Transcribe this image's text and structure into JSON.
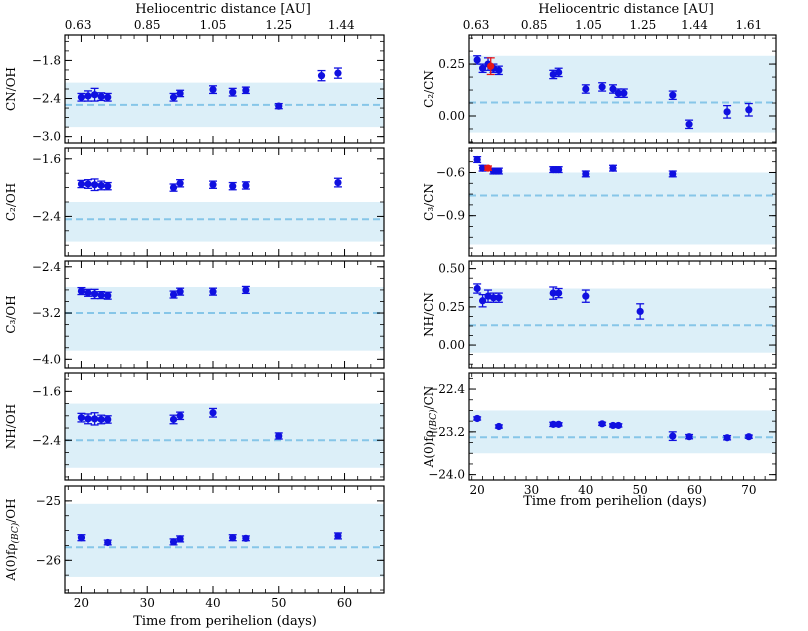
{
  "figure": {
    "title_top_axis": "Heliocentric distance [AU]",
    "x_axis_label": "Time from perihelion (days)"
  },
  "colors": {
    "points": "#1010e0",
    "highlight_points": "#e81818",
    "band": "#dceff8",
    "mean_line": "#86c6e8"
  },
  "chart_data": [
    {
      "type": "scatter",
      "panel": "left-1",
      "ylabel": "CN/OH",
      "ylim": [
        -3.1,
        -1.4
      ],
      "yticks": [
        -3.0,
        -2.4,
        -1.8
      ],
      "ytick_labels": [
        "−3.0",
        "−2.4",
        "−1.8"
      ],
      "xlim": [
        17.5,
        66
      ],
      "band": [
        -2.85,
        -2.15
      ],
      "mean": -2.5,
      "x": [
        20,
        21,
        22,
        23,
        24,
        34,
        35,
        40,
        43,
        45,
        50,
        56.5,
        59
      ],
      "y": [
        -2.38,
        -2.36,
        -2.34,
        -2.37,
        -2.38,
        -2.38,
        -2.32,
        -2.26,
        -2.3,
        -2.27,
        -2.52,
        -2.04,
        -2.0
      ],
      "err": [
        0.06,
        0.08,
        0.1,
        0.06,
        0.06,
        0.06,
        0.05,
        0.06,
        0.06,
        0.05,
        0.04,
        0.08,
        0.08
      ]
    },
    {
      "type": "scatter",
      "panel": "left-2",
      "ylabel": "C₂/OH",
      "ylim": [
        -2.95,
        -1.45
      ],
      "yticks": [
        -2.4,
        -1.6
      ],
      "ytick_labels": [
        "−2.4",
        "−1.6"
      ],
      "xlim": [
        17.5,
        66
      ],
      "band": [
        -2.75,
        -2.2
      ],
      "mean": -2.44,
      "x": [
        20,
        21,
        22,
        23,
        24,
        34,
        35,
        40,
        43,
        45,
        59
      ],
      "y": [
        -1.95,
        -1.95,
        -1.96,
        -1.97,
        -1.98,
        -2.0,
        -1.94,
        -1.96,
        -1.98,
        -1.97,
        -1.93
      ],
      "err": [
        0.05,
        0.06,
        0.08,
        0.06,
        0.05,
        0.05,
        0.05,
        0.05,
        0.05,
        0.05,
        0.06
      ]
    },
    {
      "type": "scatter",
      "panel": "left-3",
      "ylabel": "C₃/OH",
      "ylim": [
        -4.15,
        -2.3
      ],
      "yticks": [
        -4.0,
        -3.2,
        -2.4
      ],
      "ytick_labels": [
        "−4.0",
        "−3.2",
        "−2.4"
      ],
      "xlim": [
        17.5,
        66
      ],
      "band": [
        -3.85,
        -2.75
      ],
      "mean": -3.2,
      "x": [
        20,
        21,
        22,
        23,
        24,
        34,
        35,
        40,
        45
      ],
      "y": [
        -2.82,
        -2.85,
        -2.87,
        -2.89,
        -2.9,
        -2.88,
        -2.83,
        -2.83,
        -2.8
      ],
      "err": [
        0.06,
        0.06,
        0.08,
        0.06,
        0.06,
        0.06,
        0.06,
        0.06,
        0.06
      ]
    },
    {
      "type": "scatter",
      "panel": "left-4",
      "ylabel": "NH/OH",
      "ylim": [
        -3.05,
        -1.3
      ],
      "yticks": [
        -2.4,
        -1.6
      ],
      "ytick_labels": [
        "−2.4",
        "−1.6"
      ],
      "xlim": [
        17.5,
        66
      ],
      "band": [
        -2.85,
        -1.8
      ],
      "mean": -2.4,
      "x": [
        20,
        21,
        22,
        23,
        24,
        34,
        35,
        40,
        50
      ],
      "y": [
        -2.03,
        -2.05,
        -2.05,
        -2.06,
        -2.06,
        -2.06,
        -2.0,
        -1.95,
        -2.33
      ],
      "err": [
        0.07,
        0.08,
        0.1,
        0.07,
        0.06,
        0.07,
        0.06,
        0.07,
        0.05
      ]
    },
    {
      "type": "scatter",
      "panel": "left-5",
      "ylabel": "A(0)fρ(BC)/OH",
      "ylim": [
        -26.55,
        -24.75
      ],
      "yticks": [
        -26,
        -25
      ],
      "ytick_labels": [
        "−26",
        "−25"
      ],
      "xlim": [
        17.5,
        66
      ],
      "band": [
        -26.28,
        -25.05
      ],
      "mean": -25.78,
      "x": [
        20,
        24,
        34,
        35,
        43,
        45,
        59
      ],
      "y": [
        -25.62,
        -25.7,
        -25.69,
        -25.64,
        -25.62,
        -25.63,
        -25.59
      ],
      "err": [
        0.05,
        0.04,
        0.05,
        0.05,
        0.05,
        0.04,
        0.05
      ]
    },
    {
      "type": "scatter",
      "panel": "right-1",
      "ylabel": "C₂/CN",
      "ylim": [
        -0.13,
        0.39
      ],
      "yticks": [
        0.0,
        0.25
      ],
      "ytick_labels": [
        "0.00",
        "0.25"
      ],
      "xlim": [
        18.5,
        75
      ],
      "band": [
        -0.08,
        0.29
      ],
      "mean": 0.065,
      "x": [
        20,
        21,
        22,
        23,
        24,
        34,
        35,
        40,
        43,
        45,
        46,
        47,
        56,
        59,
        66,
        70
      ],
      "y": [
        0.27,
        0.23,
        0.25,
        0.23,
        0.22,
        0.2,
        0.21,
        0.13,
        0.14,
        0.13,
        0.11,
        0.11,
        0.1,
        -0.04,
        0.02,
        0.03
      ],
      "err": [
        0.02,
        0.02,
        0.03,
        0.02,
        0.02,
        0.02,
        0.02,
        0.02,
        0.02,
        0.02,
        0.02,
        0.02,
        0.02,
        0.02,
        0.03,
        0.03
      ],
      "highlight": [
        {
          "x": 22.5,
          "y": 0.24,
          "err": 0.04
        }
      ]
    },
    {
      "type": "scatter",
      "panel": "right-2",
      "ylabel": "C₃/CN",
      "ylim": [
        -1.18,
        -0.43
      ],
      "yticks": [
        -0.9,
        -0.6
      ],
      "ytick_labels": [
        "−0.9",
        "−0.6"
      ],
      "xlim": [
        18.5,
        75
      ],
      "band": [
        -1.1,
        -0.6
      ],
      "mean": -0.76,
      "x": [
        20,
        21,
        23,
        24,
        34,
        35,
        40,
        45,
        56
      ],
      "y": [
        -0.51,
        -0.57,
        -0.59,
        -0.59,
        -0.58,
        -0.58,
        -0.61,
        -0.57,
        -0.61
      ],
      "err": [
        0.02,
        0.02,
        0.02,
        0.02,
        0.02,
        0.02,
        0.02,
        0.02,
        0.02
      ],
      "highlight": [
        {
          "x": 22,
          "y": -0.57,
          "err": 0.015
        }
      ]
    },
    {
      "type": "scatter",
      "panel": "right-3",
      "ylabel": "NH/CN",
      "ylim": [
        -0.15,
        0.55
      ],
      "yticks": [
        0.0,
        0.25,
        0.5
      ],
      "ytick_labels": [
        "0.00",
        "0.25",
        "0.50"
      ],
      "xlim": [
        18.5,
        75
      ],
      "band": [
        -0.05,
        0.37
      ],
      "mean": 0.13,
      "x": [
        20,
        21,
        22,
        23,
        24,
        34,
        35,
        40,
        50
      ],
      "y": [
        0.37,
        0.29,
        0.32,
        0.31,
        0.31,
        0.34,
        0.34,
        0.32,
        0.22
      ],
      "err": [
        0.03,
        0.04,
        0.04,
        0.03,
        0.03,
        0.04,
        0.03,
        0.04,
        0.05
      ]
    },
    {
      "type": "scatter",
      "panel": "right-4",
      "ylabel": "A(0)fρ(BC)/CN",
      "ylim": [
        -24.1,
        -22.1
      ],
      "yticks": [
        -24.0,
        -23.2,
        -22.4
      ],
      "ytick_labels": [
        "−24.0",
        "−23.2",
        "−22.4"
      ],
      "xlim": [
        18.5,
        75
      ],
      "band": [
        -23.6,
        -22.8
      ],
      "mean": -23.3,
      "x": [
        20,
        24,
        34,
        35,
        43,
        45,
        46,
        56,
        59,
        66,
        70
      ],
      "y": [
        -22.95,
        -23.1,
        -23.06,
        -23.06,
        -23.05,
        -23.08,
        -23.08,
        -23.28,
        -23.29,
        -23.31,
        -23.29
      ],
      "err": [
        0.03,
        0.03,
        0.04,
        0.03,
        0.03,
        0.03,
        0.03,
        0.08,
        0.04,
        0.04,
        0.03
      ]
    }
  ],
  "axes": {
    "left_bottom_xticks": [
      20,
      30,
      40,
      50,
      60
    ],
    "right_bottom_xticks": [
      20,
      30,
      40,
      50,
      60,
      70
    ],
    "left_top_ticks": [
      {
        "day": 19.5,
        "label": "0.63"
      },
      {
        "day": 30.0,
        "label": "0.85"
      },
      {
        "day": 40.0,
        "label": "1.05"
      },
      {
        "day": 50.0,
        "label": "1.25"
      },
      {
        "day": 59.5,
        "label": "1.44"
      }
    ],
    "right_top_ticks": [
      {
        "day": 19.8,
        "label": "0.63"
      },
      {
        "day": 30.5,
        "label": "0.85"
      },
      {
        "day": 40.5,
        "label": "1.05"
      },
      {
        "day": 50.5,
        "label": "1.25"
      },
      {
        "day": 60.0,
        "label": "1.44"
      },
      {
        "day": 70.0,
        "label": "1.61"
      }
    ]
  }
}
